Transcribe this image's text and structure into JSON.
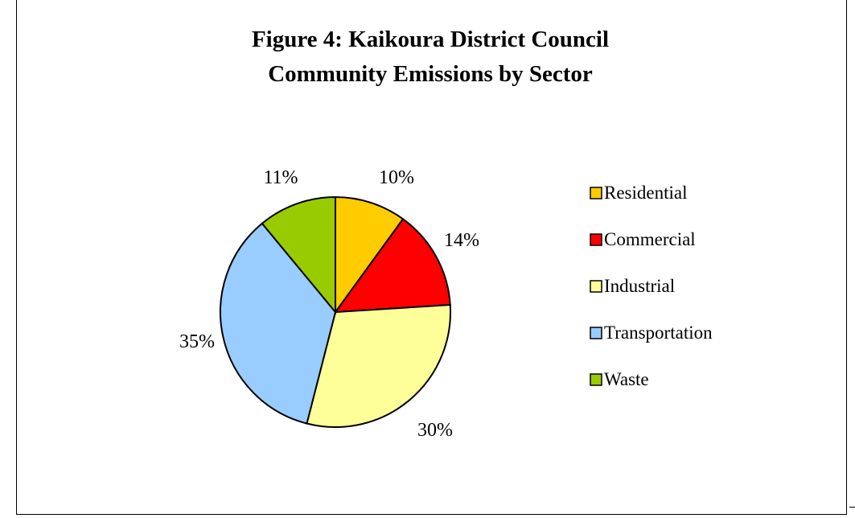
{
  "chart_data": {
    "type": "pie",
    "title": "Figure 4: Kaikoura District Council",
    "subtitle": "Community Emissions by Sector",
    "categories": [
      "Residential",
      "Commercial",
      "Industrial",
      "Transportation",
      "Waste"
    ],
    "values": [
      10,
      14,
      30,
      35,
      11
    ],
    "labels": [
      "10%",
      "14%",
      "30%",
      "35%",
      "11%"
    ],
    "colors": [
      "#FFCC00",
      "#FF0000",
      "#FFFF99",
      "#99CCFF",
      "#99CC00"
    ],
    "start_angle_deg": 0,
    "direction": "clockwise",
    "legend_position": "right",
    "slice_outline_color": "#000000"
  }
}
